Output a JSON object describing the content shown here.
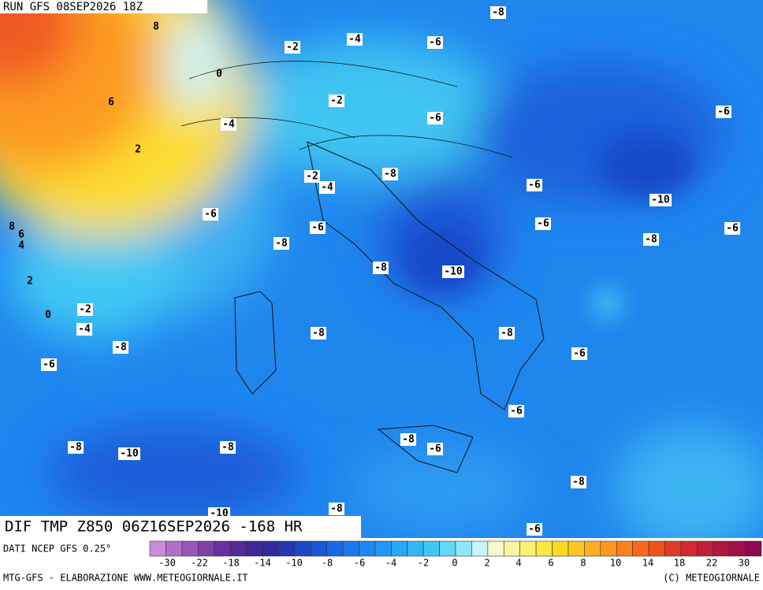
{
  "header": {
    "run": "RUN GFS 08SEP2026 18Z"
  },
  "footer": {
    "title": "DIF TMP Z850 06Z16SEP2026 -168 HR",
    "source": "DATI NCEP GFS 0.25°",
    "credit_left": "MTG-GFS - ELABORAZIONE WWW.METEOGIORNALE.IT",
    "credit_right": "(C) METEOGIORNALE"
  },
  "contour_labels": [
    "-8",
    "8",
    "-2",
    "-4",
    "-6",
    "0",
    "6",
    "-2",
    "-6",
    "-6",
    "-4",
    "2",
    "-2",
    "-8",
    "-4",
    "-6",
    "-10",
    "-6",
    "-6",
    "-6",
    "8",
    "6",
    "4",
    "-6",
    "-8",
    "-8",
    "-8",
    "-10",
    "2",
    "-2",
    "0",
    "-4",
    "-8",
    "-8",
    "-8",
    "-6",
    "-6",
    "-6",
    "-8",
    "-6",
    "-8",
    "-10",
    "-8",
    "-8",
    "-8",
    "-10",
    "-6"
  ],
  "colorbar": {
    "colors": [
      "#c88fd8",
      "#b070c8",
      "#9a55b8",
      "#8040a8",
      "#6a30a0",
      "#552a98",
      "#402898",
      "#302aa0",
      "#2438b0",
      "#1c48c8",
      "#1858d8",
      "#1868e6",
      "#1a78f0",
      "#1e88f2",
      "#2298f4",
      "#28a8f4",
      "#30b8f4",
      "#40c8f4",
      "#60d8f6",
      "#90e6f8",
      "#c8f4fa",
      "#f8f8d0",
      "#faf6a0",
      "#fcf070",
      "#fce840",
      "#fcdc20",
      "#fcc820",
      "#fcb020",
      "#fc9820",
      "#fc8020",
      "#f86820",
      "#f05020",
      "#e03a28",
      "#d02a30",
      "#c02038",
      "#b01840",
      "#a01048",
      "#900850"
    ],
    "ticks": [
      -30,
      -22,
      -18,
      -14,
      -10,
      -8,
      -6,
      -4,
      -2,
      0,
      2,
      4,
      6,
      8,
      10,
      14,
      18,
      22,
      30
    ]
  }
}
